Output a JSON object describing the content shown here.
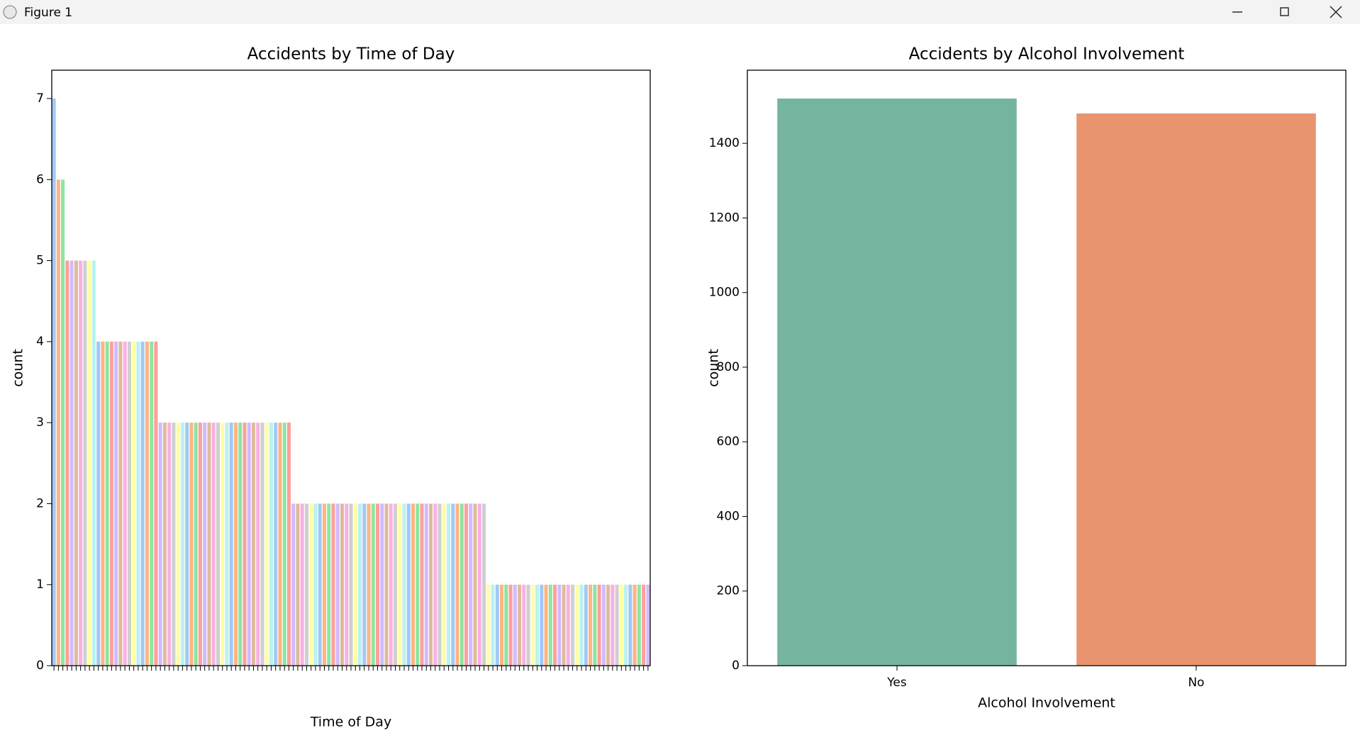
{
  "window": {
    "title": "Figure 1"
  },
  "chart_data": [
    {
      "type": "bar",
      "title": "Accidents by Time of Day",
      "xlabel": "Time of Day",
      "ylabel": "count",
      "categories": [
        null,
        null,
        null,
        null,
        null,
        null,
        null,
        null,
        null,
        null,
        null,
        null,
        null,
        null,
        null,
        null,
        null,
        null,
        null,
        null,
        null,
        null,
        null,
        null,
        null,
        null,
        null,
        null,
        null,
        null,
        null,
        null,
        null,
        null,
        null,
        null,
        null,
        null,
        null,
        null,
        null,
        null,
        null,
        null,
        null,
        null,
        null,
        null,
        null,
        null,
        null,
        null,
        null,
        null,
        null,
        null,
        null,
        null,
        null,
        null,
        null,
        null,
        null,
        null,
        null,
        null,
        null,
        null,
        null,
        null,
        null,
        null,
        null,
        null,
        null,
        null,
        null,
        null,
        null,
        null,
        null,
        null,
        null,
        null,
        null,
        null,
        null,
        null,
        null,
        null,
        null,
        null,
        null,
        null,
        null,
        null,
        null,
        null,
        null,
        null,
        null,
        null,
        null,
        null,
        null,
        null,
        null,
        null,
        null,
        null,
        null,
        null,
        null,
        null,
        null,
        null,
        null,
        null,
        null,
        null,
        null,
        null,
        null,
        null,
        null,
        null,
        null,
        null,
        null,
        null,
        null,
        null,
        null,
        null,
        null
      ],
      "values": [
        7,
        6,
        6,
        5,
        5,
        5,
        5,
        5,
        5,
        5,
        4,
        4,
        4,
        4,
        4,
        4,
        4,
        4,
        4,
        4,
        4,
        4,
        4,
        4,
        3,
        3,
        3,
        3,
        3,
        3,
        3,
        3,
        3,
        3,
        3,
        3,
        3,
        3,
        3,
        3,
        3,
        3,
        3,
        3,
        3,
        3,
        3,
        3,
        3,
        3,
        3,
        3,
        3,
        3,
        2,
        2,
        2,
        2,
        2,
        2,
        2,
        2,
        2,
        2,
        2,
        2,
        2,
        2,
        2,
        2,
        2,
        2,
        2,
        2,
        2,
        2,
        2,
        2,
        2,
        2,
        2,
        2,
        2,
        2,
        2,
        2,
        2,
        2,
        2,
        2,
        2,
        2,
        2,
        2,
        2,
        2,
        2,
        2,
        1,
        1,
        1,
        1,
        1,
        1,
        1,
        1,
        1,
        1,
        1,
        1,
        1,
        1,
        1,
        1,
        1,
        1,
        1,
        1,
        1,
        1,
        1,
        1,
        1,
        1,
        1,
        1,
        1,
        1,
        1,
        1,
        1,
        1,
        1,
        1,
        1
      ],
      "colors": [
        "#a1c9f4",
        "#ffb482",
        "#8de5a1",
        "#ff9f9b",
        "#d0bbff",
        "#debb9b",
        "#fab0e4",
        "#cfcfcf",
        "#fffea3",
        "#b9f2f0"
      ],
      "ylim": [
        0,
        7.35
      ],
      "yticks": [
        0,
        1,
        2,
        3,
        4,
        5,
        6,
        7
      ]
    },
    {
      "type": "bar",
      "title": "Accidents by Alcohol Involvement",
      "xlabel": "Alcohol Involvement",
      "ylabel": "count",
      "categories": [
        "Yes",
        "No"
      ],
      "values": [
        1520,
        1480
      ],
      "colors": [
        "#75b5a0",
        "#e8956f"
      ],
      "ylim": [
        0,
        1596
      ],
      "yticks": [
        0,
        200,
        400,
        600,
        800,
        1000,
        1200,
        1400
      ]
    }
  ]
}
